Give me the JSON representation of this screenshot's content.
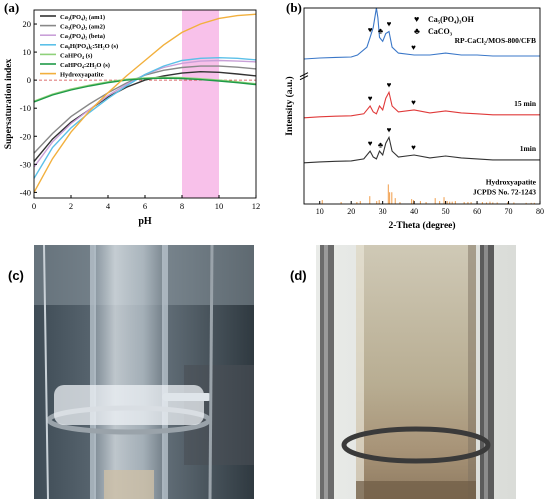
{
  "panels": {
    "a": {
      "label": "(a)",
      "chart_data": {
        "type": "line",
        "xlabel": "pH",
        "ylabel": "Supersaturation index",
        "xlim": [
          0,
          12
        ],
        "ylim": [
          -42,
          25
        ],
        "xticks": [
          0,
          2,
          4,
          6,
          8,
          10,
          12
        ],
        "yticks": [
          -40,
          -30,
          -20,
          -10,
          0,
          10,
          20
        ],
        "highlight_band": [
          8,
          10
        ],
        "highlight_color": "#f7b6e6",
        "zero_line": 0,
        "legend_position": "top-left",
        "series": [
          {
            "name": "Ca₃(PO₄)₂ (am1)",
            "color": "#333333",
            "x": [
              0,
              1,
              2,
              3,
              4,
              5,
              6,
              7,
              8,
              9,
              10,
              11,
              12
            ],
            "y": [
              -29,
              -21,
              -15,
              -10.5,
              -6,
              -2.5,
              0,
              1.5,
              2.5,
              3,
              2.8,
              2.2,
              1.5
            ]
          },
          {
            "name": "Ca₃(PO₄)₂ (am2)",
            "color": "#888888",
            "x": [
              0,
              1,
              2,
              3,
              4,
              5,
              6,
              7,
              8,
              9,
              10,
              11,
              12
            ],
            "y": [
              -26,
              -19,
              -13,
              -8.5,
              -4.5,
              -1,
              1.8,
              3.5,
              4.5,
              5,
              5,
              4.6,
              4
            ]
          },
          {
            "name": "Ca₃(PO₄)₂ (beta)",
            "color": "#c9a0d8",
            "x": [
              0,
              1,
              2,
              3,
              4,
              5,
              6,
              7,
              8,
              9,
              10,
              11,
              12
            ],
            "y": [
              -31,
              -22,
              -15.5,
              -10.5,
              -5.5,
              -1.5,
              2,
              4.5,
              6,
              6.8,
              7,
              6.8,
              6.5
            ]
          },
          {
            "name": "Ca₈H(PO₄)₆:5H₂O (s)",
            "color": "#5bc0e8",
            "x": [
              0,
              1,
              2,
              3,
              4,
              5,
              6,
              7,
              8,
              9,
              10,
              11,
              12
            ],
            "y": [
              -35,
              -24,
              -17,
              -11.5,
              -6.5,
              -2,
              2,
              5,
              7,
              7.8,
              8,
              7.8,
              7.2
            ]
          },
          {
            "name": "CaHPO₄ (s)",
            "color": "#8fd17a",
            "x": [
              0,
              1,
              2,
              3,
              4,
              5,
              6,
              7,
              8,
              9,
              10,
              11,
              12
            ],
            "y": [
              -7.5,
              -5,
              -3.2,
              -1.8,
              -0.6,
              0.3,
              0.8,
              1,
              0.9,
              0.5,
              0,
              -0.6,
              -1.3
            ]
          },
          {
            "name": "CaHPO₄:2H₂O (s)",
            "color": "#1f9a48",
            "x": [
              0,
              1,
              2,
              3,
              4,
              5,
              6,
              7,
              8,
              9,
              10,
              11,
              12
            ],
            "y": [
              -7.8,
              -5.3,
              -3.5,
              -2.1,
              -0.9,
              0,
              0.5,
              0.7,
              0.6,
              0.2,
              -0.3,
              -0.9,
              -1.6
            ]
          },
          {
            "name": "Hydroxyapatite",
            "color": "#f2b03d",
            "x": [
              0,
              1,
              2,
              3,
              4,
              5,
              6,
              7,
              8,
              9,
              10,
              11,
              12
            ],
            "y": [
              -40,
              -28,
              -18.5,
              -11,
              -4.5,
              1.5,
              7,
              12.5,
              17,
              20,
              22,
              23,
              23.5
            ]
          }
        ]
      }
    },
    "b": {
      "label": "(b)",
      "chart_data": {
        "type": "line",
        "xlabel": "2-Theta (degree)",
        "ylabel": "Intensity (a.u.)",
        "xlim": [
          5,
          80
        ],
        "xticks": [
          10,
          20,
          30,
          40,
          50,
          60,
          70,
          80
        ],
        "legend_position": "top-right",
        "legend": [
          {
            "symbol": "♥",
            "text": "Ca₅(PO₄)₃OH"
          },
          {
            "symbol": "♣",
            "text": "CaCO₃"
          }
        ],
        "series": [
          {
            "name": "RP-CaCl₂/MOS-800/CFB",
            "color": "#3a77c8",
            "baseline": 0.75,
            "x": [
              5,
              10,
              15,
              20,
              22,
              25,
              26,
              27,
              28,
              28.5,
              29,
              30,
              31,
              32,
              33,
              35,
              40,
              45,
              50,
              55,
              60,
              65,
              70,
              75,
              80
            ],
            "y": [
              0.74,
              0.745,
              0.748,
              0.75,
              0.76,
              0.8,
              0.85,
              0.9,
              1.0,
              0.95,
              0.85,
              0.83,
              0.87,
              0.88,
              0.8,
              0.77,
              0.76,
              0.76,
              0.77,
              0.76,
              0.76,
              0.755,
              0.755,
              0.755,
              0.755
            ]
          },
          {
            "name": "15 min",
            "color": "#e03a3a",
            "baseline": 0.45,
            "x": [
              5,
              10,
              15,
              20,
              24,
              26,
              27,
              28,
              29,
              30,
              31,
              32,
              33,
              35,
              40,
              45,
              50,
              55,
              60,
              65,
              70,
              75,
              80
            ],
            "y": [
              0.44,
              0.445,
              0.448,
              0.45,
              0.46,
              0.5,
              0.47,
              0.46,
              0.5,
              0.48,
              0.54,
              0.57,
              0.5,
              0.47,
              0.48,
              0.465,
              0.475,
              0.465,
              0.46,
              0.455,
              0.455,
              0.455,
              0.455
            ]
          },
          {
            "name": "1min",
            "color": "#333333",
            "baseline": 0.22,
            "x": [
              5,
              10,
              15,
              20,
              24,
              26,
              27,
              28,
              29,
              30,
              31,
              32,
              33,
              35,
              40,
              45,
              50,
              55,
              60,
              65,
              70,
              75,
              80
            ],
            "y": [
              0.21,
              0.215,
              0.218,
              0.22,
              0.23,
              0.27,
              0.24,
              0.23,
              0.27,
              0.25,
              0.31,
              0.34,
              0.27,
              0.24,
              0.25,
              0.235,
              0.245,
              0.235,
              0.23,
              0.225,
              0.225,
              0.225,
              0.225
            ]
          }
        ],
        "reference": {
          "name": "Hydroxyapatite",
          "card": "JCPDS No. 72-1243",
          "color": "#f2a65a",
          "peaks_x": [
            10.8,
            16.8,
            21.8,
            22.9,
            25.9,
            28.1,
            28.9,
            31.8,
            32.2,
            32.9,
            34.0,
            35.5,
            39.2,
            39.8,
            42.0,
            43.8,
            46.7,
            48.1,
            49.5,
            50.5,
            51.3,
            52.1,
            53.1,
            55.9,
            57.1,
            58.1,
            60.0,
            61.7,
            63.0,
            64.1,
            65.0,
            66.4,
            69.7,
            71.7,
            75.6,
            77.2,
            78.2
          ],
          "peaks_height": [
            0.02,
            0.01,
            0.01,
            0.015,
            0.04,
            0.015,
            0.02,
            0.1,
            0.06,
            0.06,
            0.03,
            0.01,
            0.025,
            0.02,
            0.015,
            0.01,
            0.03,
            0.015,
            0.035,
            0.015,
            0.012,
            0.012,
            0.015,
            0.01,
            0.01,
            0.01,
            0.008,
            0.01,
            0.008,
            0.012,
            0.008,
            0.008,
            0.008,
            0.008,
            0.006,
            0.006,
            0.006
          ]
        },
        "marks": [
          {
            "series": 0,
            "x": 26,
            "symbol": "♥"
          },
          {
            "series": 0,
            "x": 29.3,
            "symbol": "♣"
          },
          {
            "series": 0,
            "x": 32,
            "symbol": "♥"
          },
          {
            "series": 0,
            "x": 39.8,
            "symbol": "♥"
          },
          {
            "series": 1,
            "x": 26,
            "symbol": "♥"
          },
          {
            "series": 1,
            "x": 32,
            "symbol": "♥"
          },
          {
            "series": 1,
            "x": 39.8,
            "symbol": "♥"
          },
          {
            "series": 2,
            "x": 26,
            "symbol": "♥"
          },
          {
            "series": 2,
            "x": 29.3,
            "symbol": "♣"
          },
          {
            "series": 2,
            "x": 32,
            "symbol": "♥"
          },
          {
            "series": 2,
            "x": 39.8,
            "symbol": "♥"
          }
        ]
      }
    },
    "c": {
      "label": "(c)"
    },
    "d": {
      "label": "(d)"
    }
  }
}
